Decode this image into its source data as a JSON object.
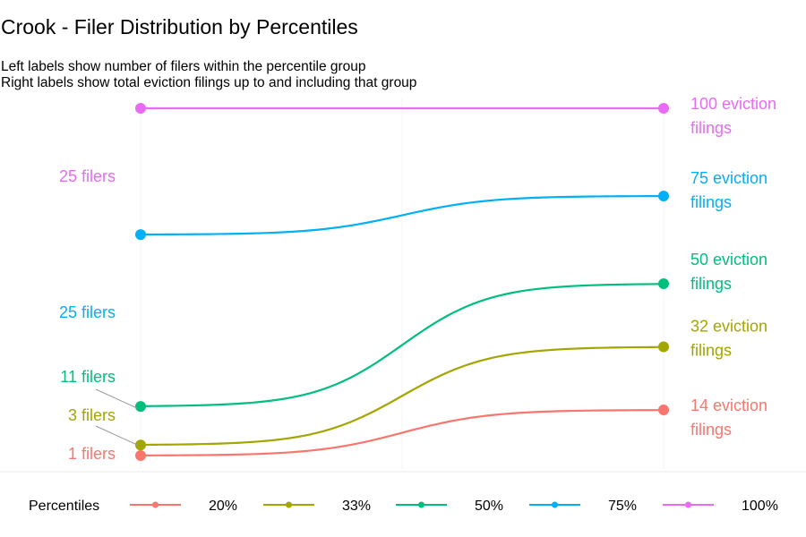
{
  "title": "Crook - Filer Distribution by Percentiles",
  "subtitle_lines": [
    "Left labels show number of filers within the percentile group",
    "Right labels show total eviction filings up to and including that group"
  ],
  "legend": {
    "title": "Percentiles"
  },
  "chart_data": {
    "type": "line",
    "title": "Crook - Filer Distribution by Percentiles",
    "subtitle": "Left labels show number of filers within the percentile group / Right labels show total eviction filings up to and including that group",
    "xlabel": "",
    "ylabel": "",
    "grid": false,
    "legend_placement": "bottom",
    "ylim": [
      0,
      100
    ],
    "series": [
      {
        "name": "20%",
        "color": "#F8766D",
        "start": 1,
        "end": 14,
        "left_label": "1 filers",
        "right_label": "14 eviction filings"
      },
      {
        "name": "33%",
        "color": "#A3A500",
        "start": 4,
        "end": 32,
        "left_label": "3 filers",
        "right_label": "32 eviction filings"
      },
      {
        "name": "50%",
        "color": "#00BF7D",
        "start": 15,
        "end": 50,
        "left_label": "11 filers",
        "right_label": "50 eviction filings"
      },
      {
        "name": "75%",
        "color": "#00B0F6",
        "start": 64,
        "end": 75,
        "left_label": "25 filers",
        "right_label": "75 eviction filings"
      },
      {
        "name": "100%",
        "color": "#E76BF3",
        "start": 100,
        "end": 100,
        "left_label": "25 filers",
        "right_label": "100 eviction filings"
      }
    ]
  }
}
